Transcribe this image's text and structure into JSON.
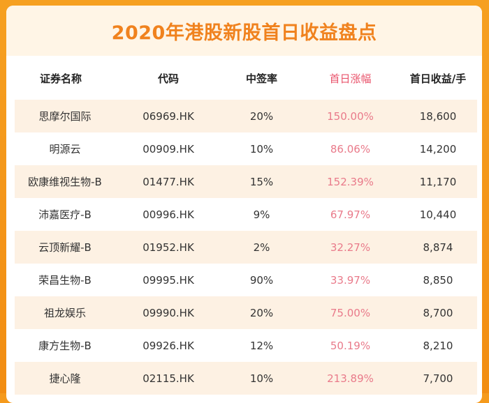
{
  "title": "2020年港股新股首日收益盘点",
  "colors": {
    "accent": "#f0821e",
    "highlight": "#e9536b",
    "band": "#fff5e6",
    "row_alt": "#fdf1e3"
  },
  "headers": [
    "证券名称",
    "代码",
    "中签率",
    "首日涨幅",
    "首日收益/手"
  ],
  "rows": [
    {
      "name": "思摩尔国际",
      "code": "06969.HK",
      "rate": "20%",
      "gain": "150.00%",
      "profit": "18,600"
    },
    {
      "name": "明源云",
      "code": "00909.HK",
      "rate": "10%",
      "gain": "86.06%",
      "profit": "14,200"
    },
    {
      "name": "欧康维视生物-B",
      "code": "01477.HK",
      "rate": "15%",
      "gain": "152.39%",
      "profit": "11,170"
    },
    {
      "name": "沛嘉医疗-B",
      "code": "00996.HK",
      "rate": "9%",
      "gain": "67.97%",
      "profit": "10,440"
    },
    {
      "name": "云顶新耀-B",
      "code": "01952.HK",
      "rate": "2%",
      "gain": "32.27%",
      "profit": "8,874"
    },
    {
      "name": "荣昌生物-B",
      "code": "09995.HK",
      "rate": "90%",
      "gain": "33.97%",
      "profit": "8,850"
    },
    {
      "name": "祖龙娱乐",
      "code": "09990.HK",
      "rate": "20%",
      "gain": "75.00%",
      "profit": "8,700"
    },
    {
      "name": "康方生物-B",
      "code": "09926.HK",
      "rate": "12%",
      "gain": "50.19%",
      "profit": "8,210"
    },
    {
      "name": "捷心隆",
      "code": "02115.HK",
      "rate": "10%",
      "gain": "213.89%",
      "profit": "7,700"
    }
  ]
}
